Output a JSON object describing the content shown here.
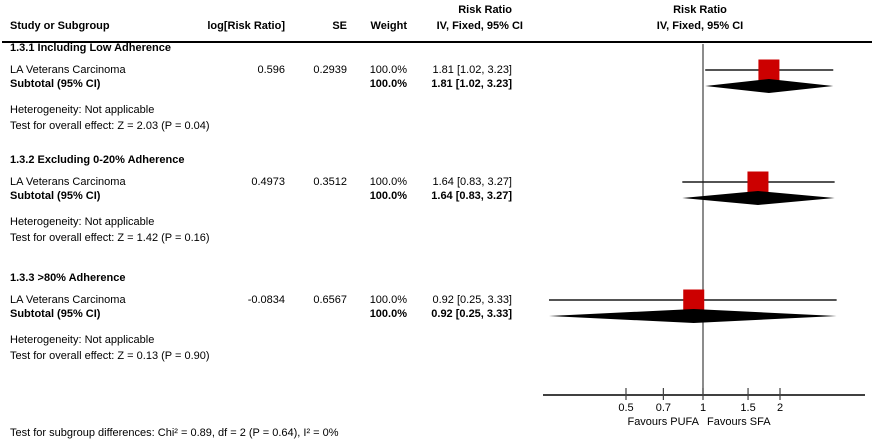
{
  "colors": {
    "background": "#ffffff",
    "text": "#000000",
    "marker": "#cc0000",
    "diamond": "#000000",
    "axis_line": "#404040",
    "ci_line": "#1a1a1a",
    "header_rule": "#000000"
  },
  "table_header": {
    "col_study": "Study or Subgroup",
    "col_log_rr": "log[Risk Ratio]",
    "col_se": "SE",
    "col_weight": "Weight",
    "col_effect_line1": "Risk Ratio",
    "col_effect_line2": "IV, Fixed, 95% CI"
  },
  "plot_header": {
    "line1": "Risk Ratio",
    "line2": "IV, Fixed, 95% CI"
  },
  "chart_data": {
    "type": "scatter",
    "subtype": "forest-plot",
    "effect_measure": "Risk Ratio",
    "method": "IV, Fixed, 95% CI",
    "x_scale": "log",
    "axis_ticks": [
      0.5,
      0.7,
      1,
      1.5,
      2
    ],
    "axis_tick_labels": [
      "0.5",
      "0.7",
      "1",
      "1.5",
      "2"
    ],
    "favours_left": "Favours PUFA",
    "favours_right": "Favours SFA",
    "subgroups": [
      {
        "title": "1.3.1 Including Low Adherence",
        "studies": [
          {
            "name": "LA Veterans Carcinoma",
            "log_rr": "0.596",
            "se": "0.2939",
            "weight": "100.0%",
            "effect_text": "1.81 [1.02, 3.23]",
            "rr": 1.81,
            "ci_low": 1.02,
            "ci_high": 3.23
          }
        ],
        "subtotal": {
          "label": "Subtotal (95% CI)",
          "weight": "100.0%",
          "effect_text": "1.81 [1.02, 3.23]",
          "rr": 1.81,
          "ci_low": 1.02,
          "ci_high": 3.23
        },
        "heterogeneity": "Heterogeneity: Not applicable",
        "overall_effect": "Test for overall effect: Z = 2.03 (P = 0.04)"
      },
      {
        "title": "1.3.2 Excluding 0-20% Adherence",
        "studies": [
          {
            "name": "LA Veterans Carcinoma",
            "log_rr": "0.4973",
            "se": "0.3512",
            "weight": "100.0%",
            "effect_text": "1.64 [0.83, 3.27]",
            "rr": 1.64,
            "ci_low": 0.83,
            "ci_high": 3.27
          }
        ],
        "subtotal": {
          "label": "Subtotal (95% CI)",
          "weight": "100.0%",
          "effect_text": "1.64 [0.83, 3.27]",
          "rr": 1.64,
          "ci_low": 0.83,
          "ci_high": 3.27
        },
        "heterogeneity": "Heterogeneity: Not applicable",
        "overall_effect": "Test for overall effect: Z = 1.42 (P = 0.16)"
      },
      {
        "title": "1.3.3 >80% Adherence",
        "studies": [
          {
            "name": "LA Veterans Carcinoma",
            "log_rr": "-0.0834",
            "se": "0.6567",
            "weight": "100.0%",
            "effect_text": "0.92 [0.25, 3.33]",
            "rr": 0.92,
            "ci_low": 0.25,
            "ci_high": 3.33
          }
        ],
        "subtotal": {
          "label": "Subtotal (95% CI)",
          "weight": "100.0%",
          "effect_text": "0.92 [0.25, 3.33]",
          "rr": 0.92,
          "ci_low": 0.25,
          "ci_high": 3.33
        },
        "heterogeneity": "Heterogeneity: Not applicable",
        "overall_effect": "Test for overall effect: Z = 0.13 (P = 0.90)"
      }
    ],
    "footer": "Test for subgroup differences: Chi² = 0.89, df = 2 (P = 0.64), I² = 0%"
  }
}
